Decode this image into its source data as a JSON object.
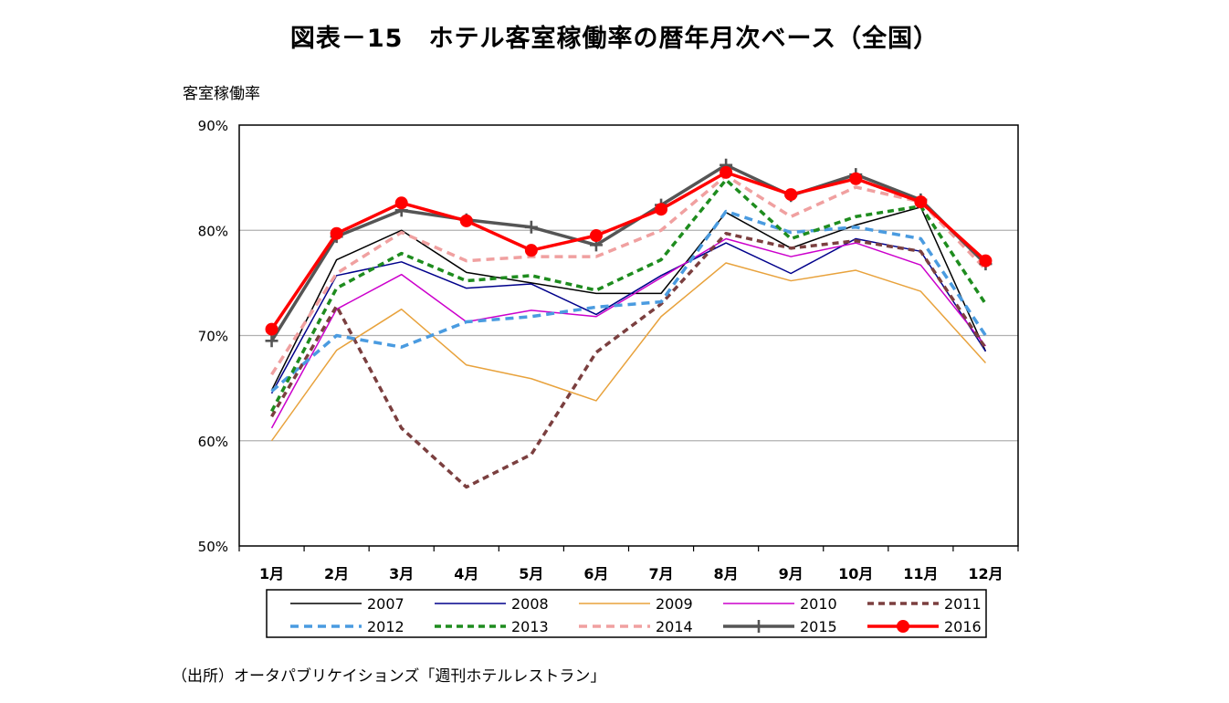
{
  "chart_data": {
    "type": "line",
    "title": "図表－15　ホテル客室稼働率の暦年月次ベース（全国）",
    "ylabel": "客室稼働率",
    "xlabel": "",
    "source": "（出所）オータパブリケイションズ「週刊ホテルレストラン」",
    "categories": [
      "1月",
      "2月",
      "3月",
      "4月",
      "5月",
      "6月",
      "7月",
      "8月",
      "9月",
      "10月",
      "11月",
      "12月"
    ],
    "ylim": [
      50,
      90
    ],
    "yticks": [
      50,
      60,
      70,
      80,
      90
    ],
    "ytick_labels": [
      "50%",
      "60%",
      "70%",
      "80%",
      "90%"
    ],
    "grid": true,
    "legend_position": "bottom",
    "series": [
      {
        "name": "2007",
        "color": "#000000",
        "width": 1.5,
        "dash": "",
        "marker": "",
        "values": [
          64.8,
          77.2,
          80.0,
          76.0,
          75.0,
          74.0,
          74.0,
          81.7,
          78.3,
          80.5,
          82.2,
          68.5
        ]
      },
      {
        "name": "2008",
        "color": "#00008B",
        "width": 1.5,
        "dash": "",
        "marker": "",
        "values": [
          64.5,
          75.7,
          77.0,
          74.5,
          74.9,
          72.0,
          75.7,
          78.8,
          75.9,
          79.2,
          78.0,
          68.5
        ]
      },
      {
        "name": "2009",
        "color": "#E8A23C",
        "width": 1.5,
        "dash": "",
        "marker": "",
        "values": [
          60.0,
          68.6,
          72.5,
          67.2,
          65.9,
          63.8,
          71.8,
          76.9,
          75.2,
          76.2,
          74.2,
          67.4
        ]
      },
      {
        "name": "2010",
        "color": "#CC00CC",
        "width": 1.5,
        "dash": "",
        "marker": "",
        "values": [
          61.2,
          72.5,
          75.8,
          71.3,
          72.4,
          71.8,
          75.5,
          79.2,
          77.5,
          78.8,
          76.7,
          69.0
        ]
      },
      {
        "name": "2011",
        "color": "#7B3F3F",
        "width": 3.5,
        "dash": "7,5",
        "marker": "",
        "values": [
          62.3,
          72.8,
          61.2,
          55.6,
          58.7,
          68.4,
          73.0,
          79.7,
          78.3,
          79.0,
          78.0,
          68.8
        ]
      },
      {
        "name": "2012",
        "color": "#4A9BE0",
        "width": 3.5,
        "dash": "9,6",
        "marker": "",
        "values": [
          64.7,
          70.0,
          68.9,
          71.3,
          71.8,
          72.7,
          73.2,
          81.8,
          79.8,
          80.3,
          79.2,
          70.0
        ]
      },
      {
        "name": "2013",
        "color": "#1E8C1E",
        "width": 3.5,
        "dash": "7,5",
        "marker": "",
        "values": [
          62.8,
          74.5,
          77.8,
          75.2,
          75.7,
          74.3,
          77.2,
          84.8,
          79.2,
          81.3,
          82.3,
          73.0
        ]
      },
      {
        "name": "2014",
        "color": "#F0A0A0",
        "width": 3.5,
        "dash": "9,6",
        "marker": "",
        "values": [
          66.3,
          75.9,
          79.8,
          77.1,
          77.5,
          77.5,
          80.0,
          85.2,
          81.3,
          84.1,
          82.7,
          76.3
        ]
      },
      {
        "name": "2015",
        "color": "#555555",
        "width": 3.5,
        "dash": "",
        "marker": "plus",
        "values": [
          69.5,
          79.4,
          81.9,
          81.0,
          80.3,
          78.6,
          82.4,
          86.2,
          83.3,
          85.3,
          82.9,
          76.8
        ]
      },
      {
        "name": "2016",
        "color": "#FF0000",
        "width": 3.5,
        "dash": "",
        "marker": "circle",
        "values": [
          70.6,
          79.7,
          82.6,
          80.9,
          78.1,
          79.5,
          82.0,
          85.5,
          83.4,
          84.9,
          82.7,
          77.1
        ]
      }
    ]
  }
}
